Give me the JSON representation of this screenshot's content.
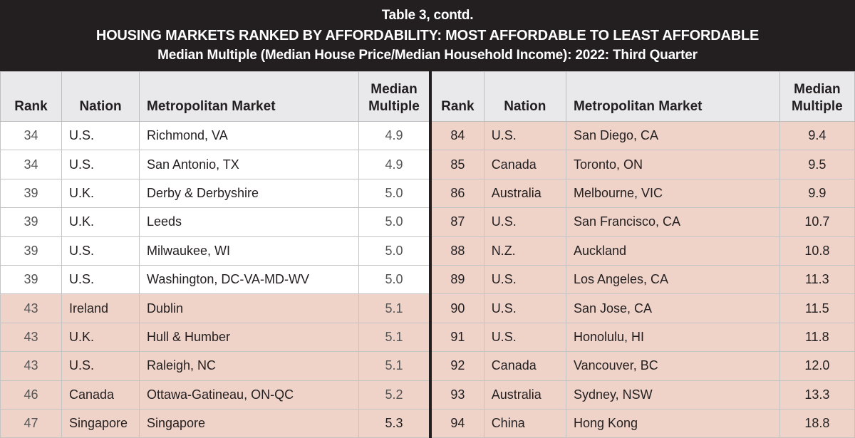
{
  "title": {
    "line1": "Table 3, contd.",
    "line2": "HOUSING MARKETS RANKED BY AFFORDABILITY: MOST AFFORDABLE TO LEAST AFFORDABLE",
    "line3": "Median Multiple (Median House Price/Median Household Income): 2022: Third Quarter"
  },
  "headers": {
    "rank": "Rank",
    "nation": "Nation",
    "market": "Metropolitan Market",
    "multiple_1": "Median",
    "multiple_2": "Multiple"
  },
  "colors": {
    "header_bg": "#231f20",
    "column_header_bg": "#e9e9eb",
    "highlight": "#efd3c8"
  },
  "left_rows": [
    {
      "rank": "34",
      "nation": "U.S.",
      "market": "Richmond, VA",
      "multiple": "4.9",
      "highlight": false
    },
    {
      "rank": "34",
      "nation": "U.S.",
      "market": "San Antonio, TX",
      "multiple": "4.9",
      "highlight": false
    },
    {
      "rank": "39",
      "nation": "U.K.",
      "market": "Derby & Derbyshire",
      "multiple": "5.0",
      "highlight": false
    },
    {
      "rank": "39",
      "nation": "U.K.",
      "market": "Leeds",
      "multiple": "5.0",
      "highlight": false
    },
    {
      "rank": "39",
      "nation": "U.S.",
      "market": "Milwaukee, WI",
      "multiple": "5.0",
      "highlight": false
    },
    {
      "rank": "39",
      "nation": "U.S.",
      "market": "Washington, DC-VA-MD-WV",
      "multiple": "5.0",
      "highlight": false
    },
    {
      "rank": "43",
      "nation": "Ireland",
      "market": "Dublin",
      "multiple": "5.1",
      "highlight": true
    },
    {
      "rank": "43",
      "nation": "U.K.",
      "market": "Hull & Humber",
      "multiple": "5.1",
      "highlight": true
    },
    {
      "rank": "43",
      "nation": "U.S.",
      "market": "Raleigh, NC",
      "multiple": "5.1",
      "highlight": true
    },
    {
      "rank": "46",
      "nation": "Canada",
      "market": "Ottawa-Gatineau, ON-QC",
      "multiple": "5.2",
      "highlight": true
    },
    {
      "rank": "47",
      "nation": "Singapore",
      "market": "Singapore",
      "multiple": "5.3",
      "highlight": true
    }
  ],
  "right_rows": [
    {
      "rank": "84",
      "nation": "U.S.",
      "market": "San Diego, CA",
      "multiple": "9.4",
      "highlight": true
    },
    {
      "rank": "85",
      "nation": "Canada",
      "market": "Toronto, ON",
      "multiple": "9.5",
      "highlight": true
    },
    {
      "rank": "86",
      "nation": "Australia",
      "market": "Melbourne, VIC",
      "multiple": "9.9",
      "highlight": true
    },
    {
      "rank": "87",
      "nation": "U.S.",
      "market": "San Francisco, CA",
      "multiple": "10.7",
      "highlight": true
    },
    {
      "rank": "88",
      "nation": "N.Z.",
      "market": "Auckland",
      "multiple": "10.8",
      "highlight": true
    },
    {
      "rank": "89",
      "nation": "U.S.",
      "market": "Los Angeles, CA",
      "multiple": "11.3",
      "highlight": true
    },
    {
      "rank": "90",
      "nation": "U.S.",
      "market": "San Jose, CA",
      "multiple": "11.5",
      "highlight": true
    },
    {
      "rank": "91",
      "nation": "U.S.",
      "market": "Honolulu, HI",
      "multiple": "11.8",
      "highlight": true
    },
    {
      "rank": "92",
      "nation": "Canada",
      "market": "Vancouver, BC",
      "multiple": "12.0",
      "highlight": true
    },
    {
      "rank": "93",
      "nation": "Australia",
      "market": "Sydney, NSW",
      "multiple": "13.3",
      "highlight": true
    },
    {
      "rank": "94",
      "nation": "China",
      "market": "Hong Kong",
      "multiple": "18.8",
      "highlight": true
    }
  ]
}
